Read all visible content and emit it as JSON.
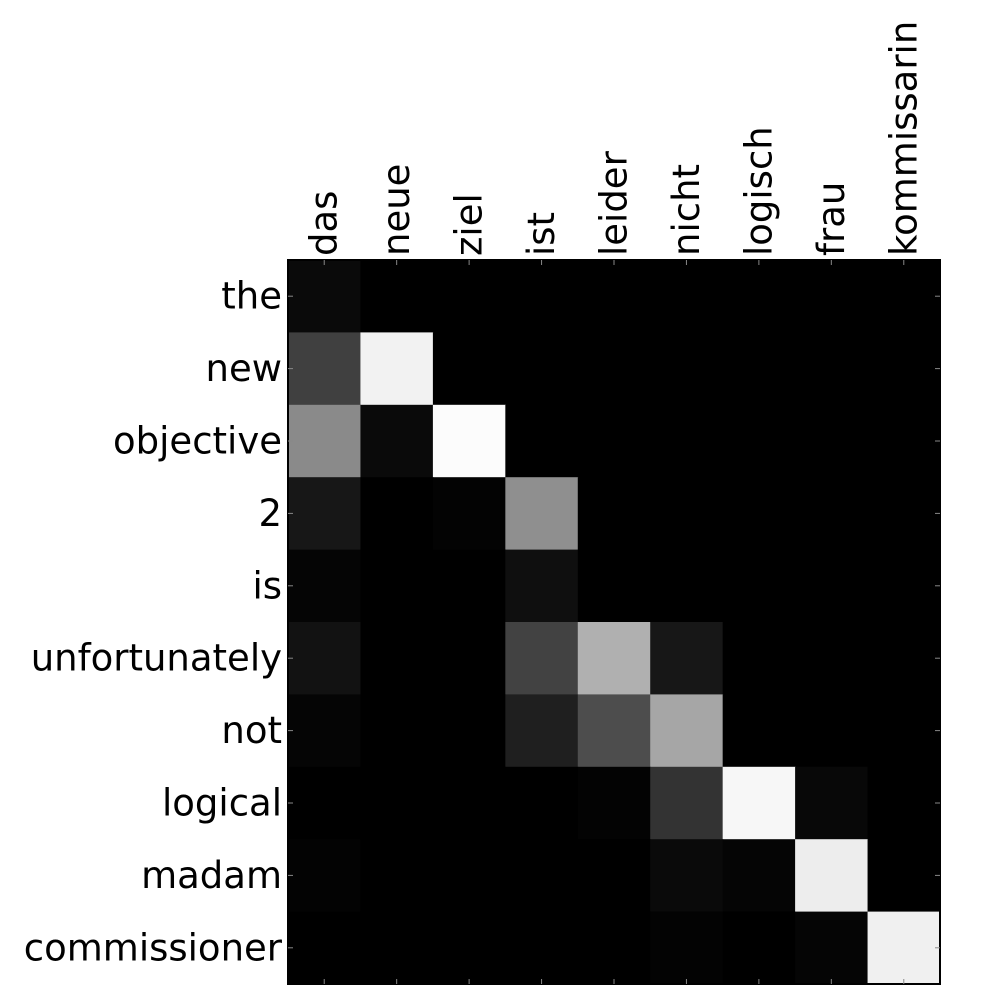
{
  "chart_data": {
    "type": "heatmap",
    "title": "",
    "xlabel": "",
    "ylabel": "",
    "colormap": "gray",
    "x_labels": [
      "das",
      "neue",
      "ziel",
      "ist",
      "leider",
      "nicht",
      "logisch",
      "frau",
      "kommissarin"
    ],
    "y_labels": [
      "the",
      "new",
      "objective",
      "2",
      "is",
      "unfortunately",
      "not",
      "logical",
      "madam",
      "commissioner"
    ],
    "values": [
      [
        0.04,
        0.0,
        0.0,
        0.0,
        0.0,
        0.0,
        0.0,
        0.0,
        0.0
      ],
      [
        0.25,
        0.95,
        0.0,
        0.0,
        0.0,
        0.0,
        0.0,
        0.0,
        0.0
      ],
      [
        0.54,
        0.04,
        0.99,
        0.0,
        0.0,
        0.0,
        0.0,
        0.0,
        0.0
      ],
      [
        0.09,
        0.0,
        0.01,
        0.56,
        0.0,
        0.0,
        0.0,
        0.0,
        0.0
      ],
      [
        0.02,
        0.0,
        0.0,
        0.06,
        0.0,
        0.0,
        0.0,
        0.0,
        0.0
      ],
      [
        0.07,
        0.0,
        0.0,
        0.26,
        0.69,
        0.09,
        0.0,
        0.0,
        0.0
      ],
      [
        0.02,
        0.0,
        0.0,
        0.12,
        0.3,
        0.65,
        0.0,
        0.0,
        0.0
      ],
      [
        0.0,
        0.0,
        0.0,
        0.0,
        0.01,
        0.2,
        0.97,
        0.03,
        0.0
      ],
      [
        0.01,
        0.0,
        0.0,
        0.0,
        0.0,
        0.04,
        0.02,
        0.93,
        0.0
      ],
      [
        0.0,
        0.0,
        0.0,
        0.0,
        0.0,
        0.01,
        0.0,
        0.02,
        0.94
      ]
    ],
    "vmin": 0,
    "vmax": 1,
    "grid": false,
    "legend": false
  }
}
